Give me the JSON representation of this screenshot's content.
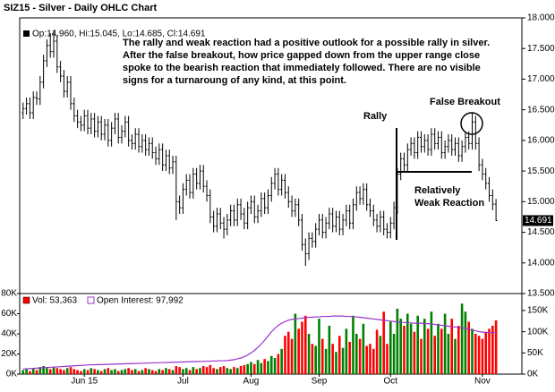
{
  "chart_data": [
    {
      "type": "ohlc",
      "title": "SIZ15 - Silver - Daily OHLC Chart",
      "legend": "Op:14.960, Hi:15.045, Lo:14.685, Cl:14.691",
      "last_label": "14.691",
      "color": "#000000",
      "xlim": [
        -1,
        146.6
      ],
      "ylim": [
        13.5,
        18.0
      ],
      "yticks": [
        {
          "value": 13.5,
          "label": "13.500"
        },
        {
          "value": 14.0,
          "label": "14.000"
        },
        {
          "value": 14.5,
          "label": "14.500"
        },
        {
          "value": 15.0,
          "label": "15.000"
        },
        {
          "value": 15.5,
          "label": "15.500"
        },
        {
          "value": 16.0,
          "label": "16.000"
        },
        {
          "value": 16.5,
          "label": "16.500"
        },
        {
          "value": 17.0,
          "label": "17.000"
        },
        {
          "value": 17.5,
          "label": "17.500"
        },
        {
          "value": 18.0,
          "label": "18.000"
        }
      ],
      "annotations": {
        "text": [
          "The rally and weak reaction had a positive outlook for a possible rally in silver.",
          "After the false breakout, how price gapped down from the upper range close",
          "spoke to the bearish reaction that immediately followed.  There are no visible",
          "signs for a turnaroung of any kind, at this point."
        ],
        "rally": "Rally",
        "false_breakout": "False Breakout",
        "weak_reaction": [
          "Relatively",
          "Weak Reaction"
        ]
      },
      "open": [
        16.45,
        16.52,
        16.6,
        16.45,
        16.7,
        16.68,
        16.95,
        17.3,
        17.55,
        17.45,
        17.62,
        17.2,
        17.05,
        16.8,
        16.95,
        16.6,
        16.4,
        16.3,
        16.25,
        16.4,
        16.2,
        16.35,
        16.15,
        16.3,
        16.1,
        16.25,
        16.0,
        16.2,
        16.35,
        16.05,
        16.15,
        16.3,
        16.0,
        15.95,
        16.1,
        15.9,
        16.0,
        15.85,
        15.95,
        15.8,
        15.7,
        15.85,
        15.6,
        15.75,
        15.55,
        15.65,
        15.0,
        14.9,
        15.2,
        15.35,
        15.15,
        15.45,
        15.3,
        15.5,
        15.25,
        15.1,
        14.75,
        14.6,
        14.8,
        14.65,
        14.55,
        14.7,
        14.85,
        14.7,
        14.95,
        14.8,
        14.65,
        14.9,
        15.0,
        14.75,
        14.85,
        15.05,
        14.9,
        15.1,
        15.3,
        15.45,
        15.2,
        15.35,
        15.15,
        15.0,
        14.85,
        14.95,
        14.7,
        14.3,
        14.15,
        14.4,
        14.35,
        14.55,
        14.7,
        14.5,
        14.65,
        14.8,
        14.6,
        14.75,
        14.55,
        14.7,
        14.85,
        14.65,
        14.95,
        15.15,
        15.05,
        15.2,
        14.95,
        14.85,
        14.7,
        14.6,
        14.75,
        14.55,
        14.5,
        14.65,
        14.9,
        15.45,
        15.7,
        15.6,
        15.85,
        15.95,
        15.8,
        16.05,
        15.9,
        16.0,
        15.85,
        16.1,
        15.95,
        16.05,
        15.8,
        15.9,
        16.0,
        15.85,
        15.95,
        15.75,
        15.9,
        16.05,
        15.95,
        16.3,
        15.95,
        15.6,
        15.45,
        15.3,
        15.1,
        14.96
      ],
      "high": [
        16.62,
        16.7,
        16.7,
        16.8,
        16.8,
        17.05,
        17.4,
        17.65,
        17.75,
        17.8,
        17.72,
        17.3,
        17.15,
        17.05,
        17.05,
        16.7,
        16.5,
        16.4,
        16.5,
        16.5,
        16.45,
        16.45,
        16.4,
        16.4,
        16.35,
        16.35,
        16.3,
        16.45,
        16.45,
        16.25,
        16.4,
        16.4,
        16.1,
        16.2,
        16.2,
        16.1,
        16.1,
        16.05,
        16.05,
        15.9,
        15.95,
        15.95,
        15.85,
        15.85,
        15.75,
        15.75,
        15.1,
        15.3,
        15.45,
        15.45,
        15.55,
        15.55,
        15.6,
        15.6,
        15.35,
        15.2,
        14.85,
        14.9,
        14.9,
        14.75,
        14.8,
        14.95,
        14.95,
        15.05,
        15.05,
        14.9,
        15.0,
        15.1,
        15.1,
        14.95,
        15.15,
        15.15,
        15.2,
        15.4,
        15.55,
        15.55,
        15.45,
        15.45,
        15.25,
        15.1,
        15.05,
        15.05,
        14.8,
        14.4,
        14.5,
        14.5,
        14.65,
        14.8,
        14.8,
        14.75,
        14.9,
        14.9,
        14.85,
        14.85,
        14.8,
        14.95,
        14.95,
        15.05,
        15.25,
        15.25,
        15.3,
        15.3,
        15.05,
        14.95,
        14.8,
        14.85,
        14.85,
        14.65,
        14.75,
        15.0,
        15.55,
        15.8,
        15.8,
        15.95,
        16.05,
        16.05,
        16.15,
        16.15,
        16.1,
        16.1,
        16.2,
        16.2,
        16.15,
        16.15,
        16.0,
        16.1,
        16.1,
        16.05,
        16.05,
        16.0,
        16.15,
        16.15,
        16.45,
        16.4,
        16.05,
        15.7,
        15.55,
        15.4,
        15.2,
        15.045
      ],
      "low": [
        16.35,
        16.42,
        16.35,
        16.35,
        16.58,
        16.58,
        16.85,
        17.2,
        17.35,
        17.35,
        17.1,
        16.95,
        16.7,
        16.7,
        16.5,
        16.3,
        16.2,
        16.15,
        16.15,
        16.1,
        16.1,
        16.05,
        16.05,
        16.0,
        16.0,
        15.9,
        15.9,
        16.1,
        15.95,
        15.95,
        16.05,
        15.9,
        15.85,
        15.85,
        15.8,
        15.8,
        15.75,
        15.75,
        15.7,
        15.6,
        15.6,
        15.5,
        15.5,
        15.45,
        15.45,
        14.7,
        14.8,
        14.8,
        15.1,
        15.05,
        15.05,
        15.2,
        15.2,
        15.15,
        15.0,
        14.65,
        14.5,
        14.5,
        14.55,
        14.4,
        14.45,
        14.6,
        14.6,
        14.6,
        14.7,
        14.55,
        14.55,
        14.8,
        14.65,
        14.65,
        14.75,
        14.8,
        14.8,
        15.0,
        15.2,
        15.1,
        15.1,
        15.05,
        14.9,
        14.75,
        14.75,
        14.6,
        14.2,
        13.95,
        14.05,
        14.25,
        14.25,
        14.45,
        14.4,
        14.4,
        14.55,
        14.5,
        14.5,
        14.45,
        14.45,
        14.6,
        14.55,
        14.55,
        14.85,
        14.95,
        14.95,
        14.85,
        14.75,
        14.6,
        14.5,
        14.5,
        14.45,
        14.4,
        14.4,
        14.55,
        14.8,
        15.35,
        15.5,
        15.5,
        15.75,
        15.7,
        15.7,
        15.8,
        15.8,
        15.75,
        15.75,
        15.85,
        15.85,
        15.7,
        15.7,
        15.8,
        15.75,
        15.75,
        15.65,
        15.65,
        15.8,
        15.85,
        15.85,
        15.85,
        15.5,
        15.35,
        15.2,
        15.0,
        14.86,
        14.685
      ],
      "close": [
        16.52,
        16.6,
        16.45,
        16.7,
        16.68,
        16.95,
        17.3,
        17.55,
        17.45,
        17.62,
        17.2,
        17.05,
        16.8,
        16.95,
        16.6,
        16.4,
        16.3,
        16.25,
        16.4,
        16.2,
        16.35,
        16.15,
        16.3,
        16.1,
        16.25,
        16.0,
        16.2,
        16.35,
        16.05,
        16.15,
        16.3,
        16.0,
        15.95,
        16.1,
        15.9,
        16.0,
        15.85,
        15.95,
        15.8,
        15.7,
        15.85,
        15.6,
        15.75,
        15.55,
        15.65,
        15.0,
        14.9,
        15.2,
        15.35,
        15.15,
        15.45,
        15.3,
        15.5,
        15.25,
        15.1,
        14.75,
        14.6,
        14.8,
        14.65,
        14.55,
        14.7,
        14.85,
        14.7,
        14.95,
        14.8,
        14.65,
        14.9,
        15.0,
        14.75,
        14.85,
        15.05,
        14.9,
        15.1,
        15.3,
        15.45,
        15.2,
        15.35,
        15.15,
        15.0,
        14.85,
        14.95,
        14.7,
        14.3,
        14.15,
        14.4,
        14.35,
        14.55,
        14.7,
        14.5,
        14.65,
        14.8,
        14.6,
        14.75,
        14.55,
        14.7,
        14.85,
        14.65,
        14.95,
        15.15,
        15.05,
        15.2,
        14.95,
        14.85,
        14.7,
        14.6,
        14.75,
        14.55,
        14.5,
        14.65,
        14.9,
        15.45,
        15.7,
        15.6,
        15.85,
        15.95,
        15.8,
        16.05,
        15.9,
        16.0,
        15.85,
        16.1,
        15.95,
        16.05,
        15.8,
        15.9,
        16.0,
        15.85,
        15.95,
        15.75,
        15.9,
        16.05,
        15.95,
        16.3,
        15.95,
        15.6,
        15.45,
        15.3,
        15.1,
        14.96,
        14.691
      ]
    },
    {
      "type": "bar",
      "up_color": "#008000",
      "down_color": "#ff0000",
      "xlim": [
        -1,
        146.6
      ],
      "ylim": [
        0,
        80000
      ],
      "y2lim": [
        0,
        190000
      ],
      "xticks": [
        {
          "value": 18,
          "label": "Jun 15"
        },
        {
          "value": 47,
          "label": "Jul"
        },
        {
          "value": 67,
          "label": "Aug"
        },
        {
          "value": 87,
          "label": "Sep"
        },
        {
          "value": 108,
          "label": "Oct"
        },
        {
          "value": 135,
          "label": "Nov"
        }
      ],
      "yticks": [
        {
          "value": 0,
          "label": "0K"
        },
        {
          "value": 20000,
          "label": "20K"
        },
        {
          "value": 40000,
          "label": "40K"
        },
        {
          "value": 60000,
          "label": "60K"
        },
        {
          "value": 80000,
          "label": "80K"
        }
      ],
      "y2ticks": [
        {
          "value": 0,
          "label": "0K"
        },
        {
          "value": 50000,
          "label": "50K"
        },
        {
          "value": 100000,
          "label": "100K"
        },
        {
          "value": 150000,
          "label": "150K"
        }
      ],
      "series": [
        {
          "name": "Vol: 53,363",
          "color": "#ff0000",
          "values": [
            4000,
            5000,
            3000,
            6000,
            4000,
            7000,
            8000,
            6000,
            5000,
            7000,
            6000,
            5000,
            4000,
            6000,
            7000,
            5000,
            4000,
            3000,
            5000,
            4000,
            6000,
            5000,
            4000,
            3000,
            5000,
            6000,
            4000,
            5000,
            3000,
            4000,
            5000,
            6000,
            4000,
            5000,
            3000,
            4000,
            6000,
            5000,
            4000,
            3000,
            5000,
            4000,
            6000,
            5000,
            4000,
            8000,
            7000,
            5000,
            6000,
            4000,
            7000,
            5000,
            6000,
            8000,
            7000,
            9000,
            6000,
            5000,
            7000,
            8000,
            6000,
            5000,
            7000,
            6000,
            8000,
            9000,
            10000,
            12000,
            10000,
            14000,
            11000,
            15000,
            13000,
            18000,
            16000,
            20000,
            25000,
            38000,
            42000,
            35000,
            60000,
            45000,
            52000,
            58000,
            40000,
            30000,
            28000,
            55000,
            35000,
            25000,
            48000,
            30000,
            22000,
            38000,
            26000,
            45000,
            32000,
            58000,
            40000,
            35000,
            50000,
            28000,
            30000,
            25000,
            44000,
            38000,
            62000,
            30000,
            52000,
            40000,
            65000,
            55000,
            48000,
            60000,
            50000,
            42000,
            58000,
            35000,
            55000,
            45000,
            62000,
            38000,
            50000,
            45000,
            60000,
            40000,
            55000,
            35000,
            48000,
            70000,
            62000,
            52000,
            45000,
            40000,
            38000,
            35000,
            42000,
            45000,
            48000,
            53363
          ]
        },
        {
          "name": "Open Interest: 97,992",
          "color": "#9933cc",
          "axis": "y2",
          "values": [
            12000,
            12500,
            13000,
            13500,
            14000,
            14500,
            15000,
            15500,
            16000,
            16500,
            17000,
            17500,
            18000,
            18500,
            19000,
            19500,
            20000,
            20500,
            21000,
            21500,
            22000,
            22000,
            22500,
            22500,
            23000,
            23000,
            23500,
            23500,
            24000,
            24000,
            24500,
            24500,
            25000,
            25000,
            25500,
            25500,
            26000,
            26000,
            26500,
            26500,
            27000,
            27000,
            27500,
            27500,
            28000,
            28000,
            28500,
            28500,
            29000,
            29000,
            29500,
            29500,
            30000,
            30000,
            30500,
            30500,
            31000,
            31000,
            31500,
            31500,
            32000,
            33000,
            34000,
            36000,
            38000,
            41000,
            45000,
            50000,
            56000,
            63000,
            71000,
            80000,
            90000,
            100000,
            108000,
            115000,
            120000,
            124000,
            127000,
            129000,
            130000,
            131000,
            132000,
            133000,
            134000,
            134000,
            135000,
            135000,
            136000,
            136000,
            136000,
            137000,
            137000,
            137000,
            137000,
            136000,
            136000,
            135000,
            135000,
            134000,
            133000,
            132000,
            131000,
            130000,
            129000,
            128000,
            127000,
            126000,
            125000,
            124000,
            123000,
            122000,
            122000,
            121000,
            121000,
            120000,
            120000,
            120000,
            119000,
            119000,
            118000,
            117000,
            116000,
            115000,
            114000,
            113000,
            112000,
            111000,
            110000,
            109000,
            108000,
            106000,
            104000,
            102000,
            100000,
            99000,
            98000,
            98000,
            97500,
            97992
          ]
        }
      ]
    }
  ]
}
